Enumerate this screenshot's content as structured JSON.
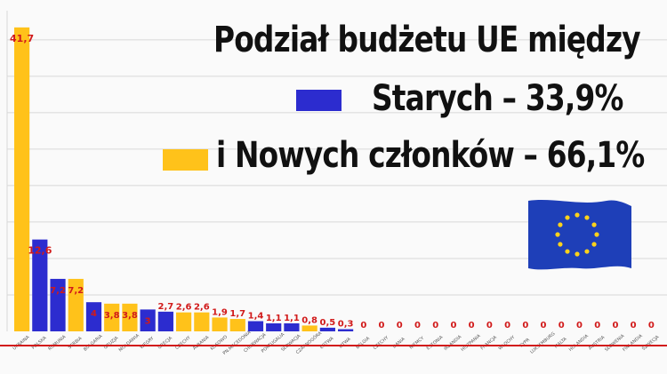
{
  "chart_data": {
    "type": "bar",
    "title_line1": "Podział budżetu UE między",
    "legend": [
      {
        "label": "Starych – 33,9%",
        "color": "#2c2ccf"
      },
      {
        "label": "i Nowych członków – 66,1%",
        "color": "#ffc21a"
      }
    ],
    "categories": [
      "UKRAINA",
      "POLSKA",
      "RUMUNIA",
      "SERBIA",
      "BUŁGARIA",
      "GRUZJA",
      "MOŁDAWIA",
      "WĘGRY",
      "GRECJA",
      "CZECHY",
      "ALBANIA",
      "KOSOWO",
      "PN.MACEDONIA",
      "CHORWACJA",
      "PORTUGALIA",
      "SŁOWACJA",
      "CZARNOGÓRA",
      "ŁOTWA",
      "LITWA",
      "BELGIA",
      "CZECHY",
      "DANIA",
      "NIEMCY",
      "ESTONIA",
      "IRLANDIA",
      "HISZPANIA",
      "FRANCJA",
      "WŁOCHY",
      "CYPR",
      "LUKSEMBURG",
      "MALTA",
      "HOLANDIA",
      "AUSTRIA",
      "SŁOWENIA",
      "FINLANDIA",
      "SZWECJA"
    ],
    "values": [
      41.7,
      12.6,
      7.2,
      7.2,
      4,
      3.8,
      3.8,
      3,
      2.7,
      2.6,
      2.6,
      1.9,
      1.7,
      1.4,
      1.1,
      1.1,
      0.8,
      0.5,
      0.3,
      0,
      0,
      0,
      0,
      0,
      0,
      0,
      0,
      0,
      0,
      0,
      0,
      0,
      0,
      0,
      0,
      0
    ],
    "labels": [
      "41,7",
      "12,6",
      "7,2",
      "7,2",
      "4",
      "3,8",
      "3,8",
      "3",
      "2,7",
      "2,6",
      "2,6",
      "1,9",
      "1,7",
      "1,4",
      "1,1",
      "1,1",
      "0,8",
      "0,5",
      "0,3",
      "0",
      "0",
      "0",
      "0",
      "0",
      "0",
      "0",
      "0",
      "0",
      "0",
      "0",
      "0",
      "0",
      "0",
      "0",
      "0",
      "0"
    ],
    "groups": [
      "new",
      "old",
      "old",
      "new",
      "old",
      "new",
      "new",
      "old",
      "old",
      "new",
      "new",
      "new",
      "new",
      "old",
      "old",
      "old",
      "new",
      "old",
      "old",
      "old",
      "old",
      "old",
      "old",
      "old",
      "old",
      "old",
      "old",
      "old",
      "old",
      "old",
      "old",
      "old",
      "old",
      "old",
      "old",
      "old"
    ],
    "ylim": [
      0,
      44
    ],
    "grid": true
  },
  "colors": {
    "old": "#2c2ccf",
    "new": "#ffc21a",
    "value_label": "#d11a1a",
    "grid": "#d8d8d8",
    "baseline": "#d21a1a",
    "flag_blue": "#1e3fb8",
    "flag_star": "#ffd21a"
  },
  "flag_icon": "eu-flag-icon"
}
